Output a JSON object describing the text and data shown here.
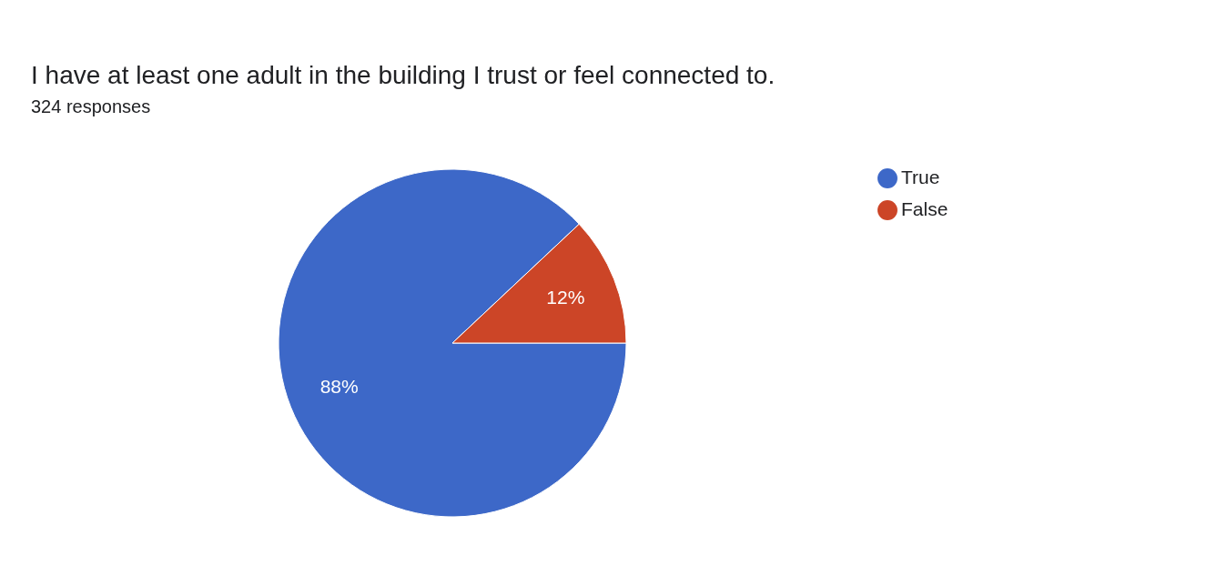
{
  "chart_data": {
    "type": "pie",
    "title": "I have at least one adult in the building I trust or feel connected to.",
    "subtitle": "324 responses",
    "categories": [
      "True",
      "False"
    ],
    "values": [
      88,
      12
    ],
    "colors": [
      "#3d68c8",
      "#cc4527"
    ],
    "value_labels": [
      "88%",
      "12%"
    ],
    "legend": "right"
  }
}
